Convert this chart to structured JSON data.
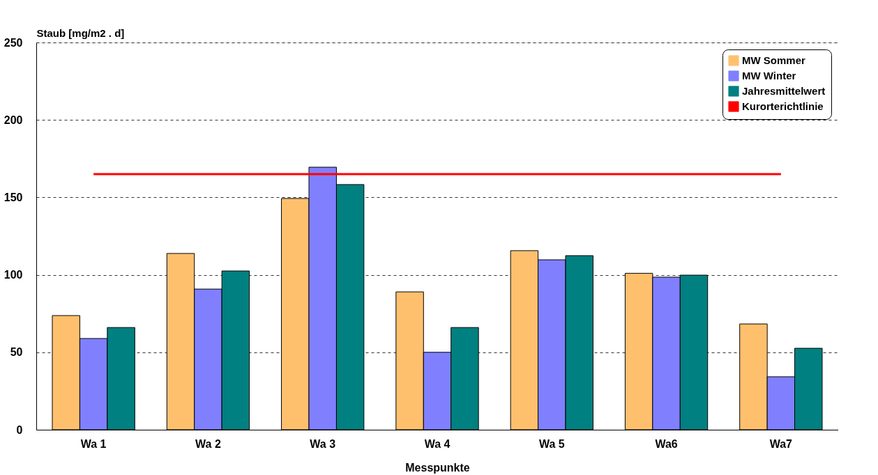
{
  "chart_data": {
    "type": "bar",
    "xlabel": "Messpunkte",
    "ylabel": "Staub [mg/m2 . d]",
    "categories": [
      "Wa 1",
      "Wa 2",
      "Wa 3",
      "Wa 4",
      "Wa 5",
      "Wa6",
      "Wa7"
    ],
    "series": [
      {
        "name": "MW Sommer",
        "color": "#ffc06e",
        "values": [
          73.7,
          113.8,
          149.3,
          89,
          115.6,
          101,
          68.3
        ]
      },
      {
        "name": "MW Winter",
        "color": "#8080ff",
        "values": [
          58.9,
          90.8,
          169.5,
          50,
          109.7,
          98.5,
          34.2
        ]
      },
      {
        "name": "Jahresmittelwert",
        "color": "#008080",
        "values": [
          66,
          102.5,
          158.3,
          66,
          112.4,
          99.8,
          52.6
        ]
      },
      {
        "name": "Kurorterichtlinie",
        "color": "#ff0000",
        "type": "line",
        "values": [
          165,
          165,
          165,
          165,
          165,
          165,
          165
        ]
      }
    ],
    "ylim": [
      0,
      250
    ],
    "yticks": [
      0,
      50,
      100,
      150,
      200,
      250
    ],
    "grid": "y",
    "legend": "top right"
  }
}
